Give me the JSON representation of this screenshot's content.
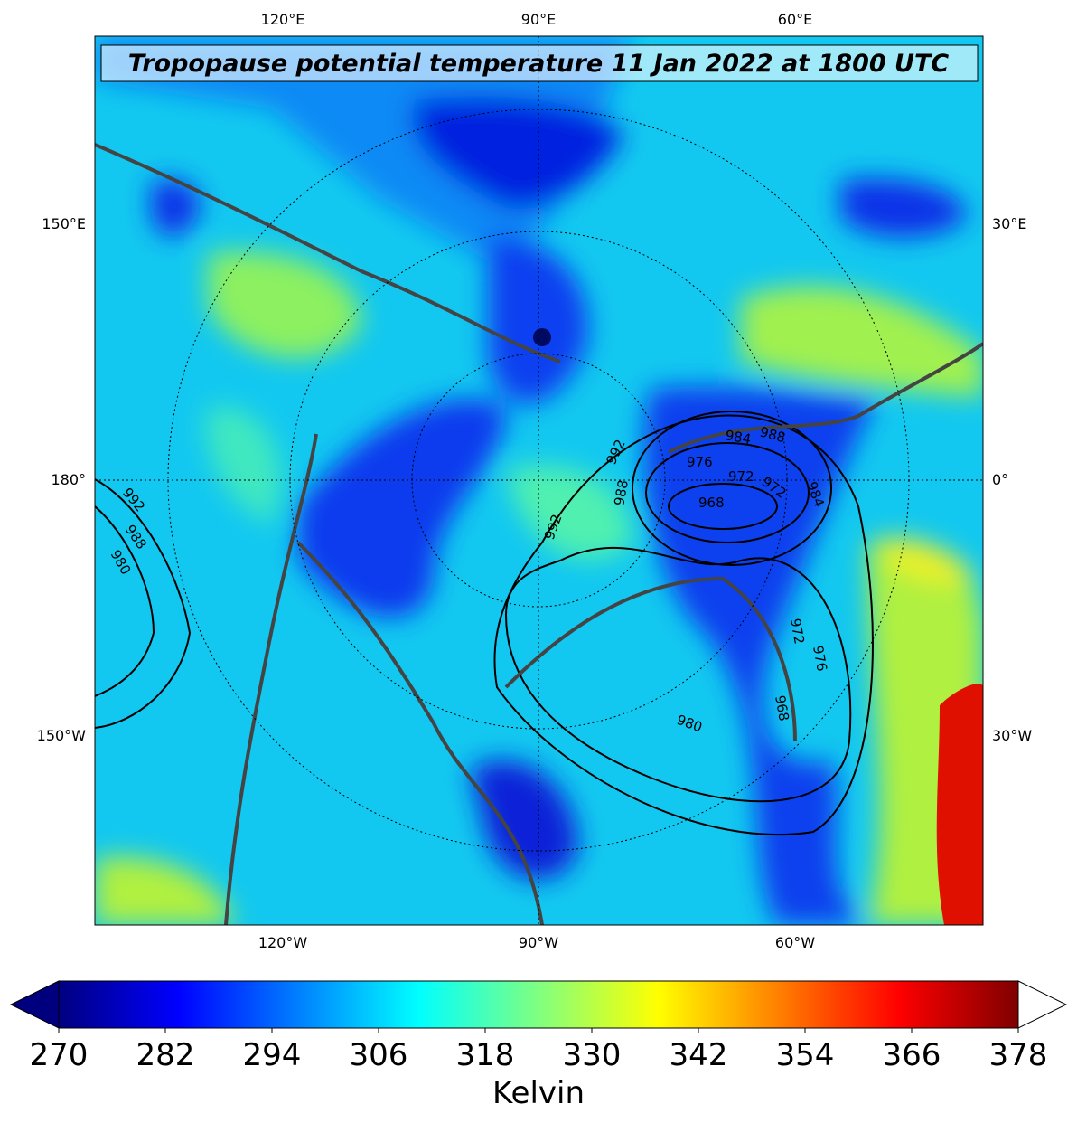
{
  "map": {
    "title": "Tropopause potential temperature 11 Jan 2022 at 1800 UTC",
    "top_labels": [
      "120°E",
      "90°E",
      "60°E"
    ],
    "left_labels": [
      "150°E",
      "180°",
      "150°W"
    ],
    "right_labels": [
      "30°E",
      "0°",
      "30°W"
    ],
    "bottom_labels": [
      "120°W",
      "90°W",
      "60°W"
    ],
    "contour_labels": [
      992,
      988,
      980,
      992,
      988,
      984,
      988,
      976,
      972,
      972,
      984,
      968,
      992,
      980,
      972,
      976,
      968
    ]
  },
  "colorbar": {
    "label": "Kelvin",
    "lim": [
      270,
      378
    ],
    "ticks": [
      270,
      282,
      294,
      306,
      318,
      330,
      342,
      354,
      366,
      378
    ]
  }
}
